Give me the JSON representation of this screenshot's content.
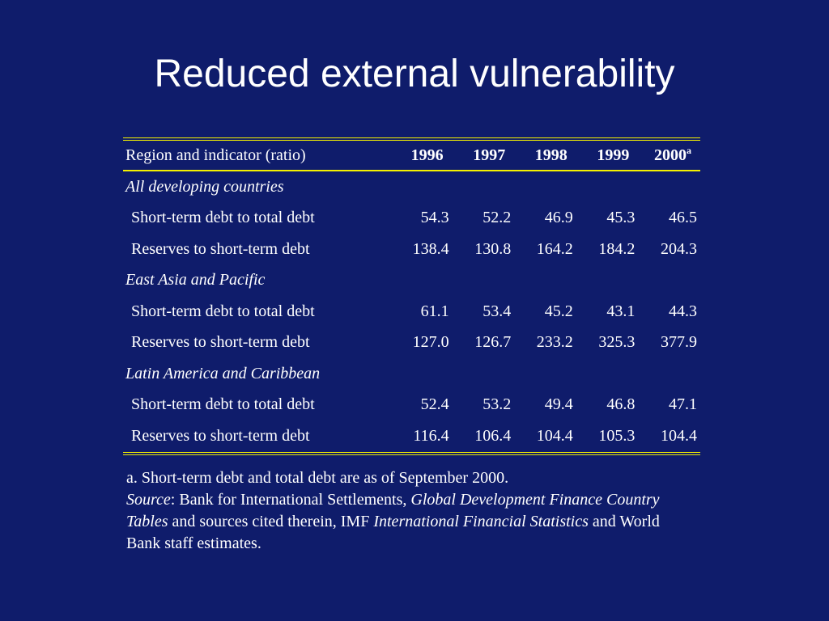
{
  "slide": {
    "title": "Reduced external vulnerability",
    "background_color": "#0f1c6b",
    "rule_color": "#f4f000"
  },
  "table": {
    "header": {
      "label": "Region and indicator (ratio)",
      "years": [
        "1996",
        "1997",
        "1998",
        "1999",
        "2000"
      ],
      "last_year_superscript": "a"
    },
    "groups": [
      {
        "name": "All developing countries",
        "rows": [
          {
            "label": "Short-term debt to total debt",
            "values": [
              "54.3",
              "52.2",
              "46.9",
              "45.3",
              "46.5"
            ]
          },
          {
            "label": "Reserves to short-term debt",
            "values": [
              "138.4",
              "130.8",
              "164.2",
              "184.2",
              "204.3"
            ]
          }
        ]
      },
      {
        "name": "East Asia and Pacific",
        "rows": [
          {
            "label": "Short-term debt to total debt",
            "values": [
              "61.1",
              "53.4",
              "45.2",
              "43.1",
              "44.3"
            ]
          },
          {
            "label": "Reserves to short-term debt",
            "values": [
              "127.0",
              "126.7",
              "233.2",
              "325.3",
              "377.9"
            ]
          }
        ]
      },
      {
        "name": "Latin America and Caribbean",
        "rows": [
          {
            "label": "Short-term debt to total debt",
            "values": [
              "52.4",
              "53.2",
              "49.4",
              "46.8",
              "47.1"
            ]
          },
          {
            "label": "Reserves to short-term debt",
            "values": [
              "116.4",
              "106.4",
              "104.4",
              "105.3",
              "104.4"
            ]
          }
        ]
      }
    ]
  },
  "footnote": {
    "note_a": "a. Short-term debt and total debt are as of September 2000.",
    "source_label": "Source",
    "source_sep": ": Bank for International Settlements, ",
    "source_title1": "Global Development Finance Country Tables",
    "source_mid": " and sources cited therein, IMF ",
    "source_title2": "International Financial Statistics",
    "source_end": " and World Bank staff estimates."
  }
}
